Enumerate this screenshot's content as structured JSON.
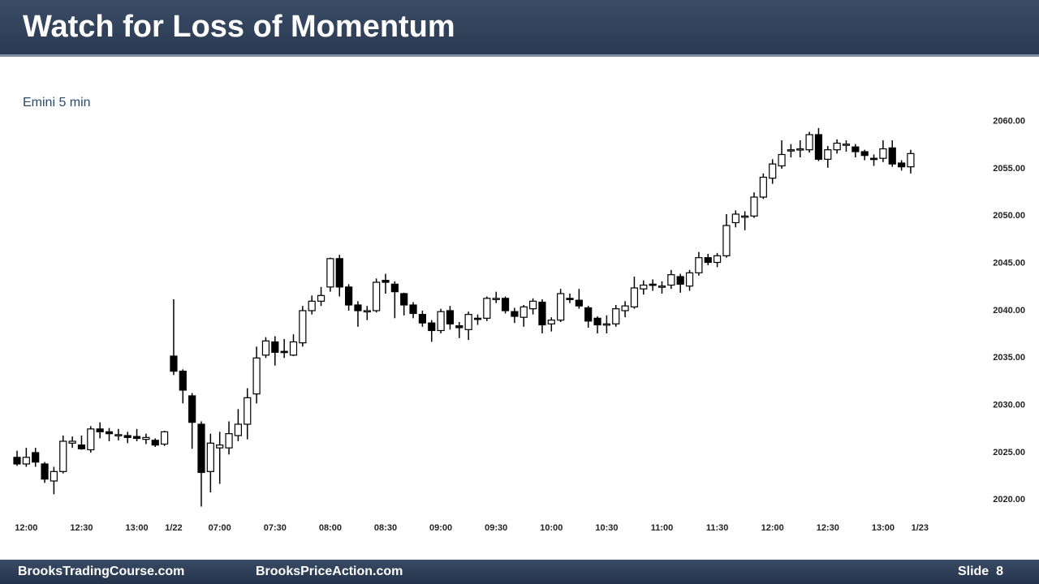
{
  "slide": {
    "title": "Watch for Loss of Momentum",
    "footer_left": "BrooksTradingCourse.com",
    "footer_center": "BrooksPriceAction.com",
    "footer_right": "Slide  8"
  },
  "chart_data": {
    "type": "candlestick",
    "subtitle": "Emini 5 min",
    "categories": [
      null,
      "12:00",
      null,
      null,
      null,
      null,
      null,
      "12:30",
      null,
      null,
      null,
      null,
      null,
      "13:00",
      null,
      null,
      null,
      "1/22",
      null,
      null,
      null,
      null,
      "07:00",
      null,
      null,
      null,
      null,
      null,
      "07:30",
      null,
      null,
      null,
      null,
      null,
      "08:00",
      null,
      null,
      null,
      null,
      null,
      "08:30",
      null,
      null,
      null,
      null,
      null,
      "09:00",
      null,
      null,
      null,
      null,
      null,
      "09:30",
      null,
      null,
      null,
      null,
      null,
      "10:00",
      null,
      null,
      null,
      null,
      null,
      "10:30",
      null,
      null,
      null,
      null,
      null,
      "11:00",
      null,
      null,
      null,
      null,
      null,
      "11:30",
      null,
      null,
      null,
      null,
      null,
      "12:00",
      null,
      null,
      null,
      null,
      null,
      "12:30",
      null,
      null,
      null,
      null,
      null,
      "13:00",
      null,
      null,
      null,
      "1/23"
    ],
    "open": [
      2024.5,
      2023.8,
      2025,
      2023.8,
      2022,
      2023,
      2026,
      2025.8,
      2025.3,
      2027.5,
      2027.2,
      2026.8,
      2026.8,
      2026.7,
      2026.4,
      2026.3,
      2025.9,
      2035.2,
      2033.6,
      2031,
      2028,
      2023,
      2025.5,
      2025.5,
      2026.8,
      2028,
      2031.2,
      2035.3,
      2036.7,
      2035.7,
      2035.3,
      2036.6,
      2040,
      2041,
      2042.5,
      2045.5,
      2042.5,
      2040.6,
      2040,
      2040,
      2043.2,
      2042.8,
      2041.8,
      2040.6,
      2039.6,
      2038.7,
      2037.9,
      2040,
      2038.4,
      2038,
      2039.2,
      2039.2,
      2041.2,
      2041.3,
      2039.9,
      2039.3,
      2040.2,
      2040.9,
      2038.6,
      2039,
      2041.3,
      2041.1,
      2040.3,
      2039.2,
      2038.6,
      2038.6,
      2040,
      2040.4,
      2042.3,
      2042.8,
      2042.6,
      2042.7,
      2043.6,
      2042.6,
      2044,
      2045.6,
      2045.1,
      2045.8,
      2049.3,
      2050,
      2050,
      2052,
      2054,
      2055.3,
      2057,
      2057,
      2057,
      2058.6,
      2056,
      2057,
      2057.5,
      2057.3,
      2056.8,
      2056.1,
      2056.1,
      2057.2,
      2055.6,
      2055.2,
      null
    ],
    "high": [
      2025.2,
      2025.5,
      2025.5,
      2024,
      2023.5,
      2026.8,
      2026.7,
      2026.8,
      2027.8,
      2028.2,
      2027.6,
      2027.5,
      2027.2,
      2027.5,
      2027,
      2026.5,
      2027.3,
      2041.2,
      2033.8,
      2031.3,
      2028.3,
      2027,
      2027.2,
      2028.3,
      2029.6,
      2031.8,
      2036.2,
      2037.2,
      2037.3,
      2037,
      2037.5,
      2040.5,
      2041.6,
      2042.5,
      2045.6,
      2045.9,
      2042.8,
      2041,
      2040.5,
      2043.4,
      2043.9,
      2043.1,
      2041.9,
      2040.9,
      2040,
      2039,
      2040.2,
      2040.5,
      2038.8,
      2039.9,
      2039.6,
      2041.5,
      2042,
      2041.5,
      2040.3,
      2040.6,
      2041.3,
      2041.2,
      2039.3,
      2042.3,
      2041.8,
      2042.3,
      2040.5,
      2039.4,
      2039.5,
      2040.6,
      2041,
      2043.6,
      2043.2,
      2043.3,
      2043.1,
      2044.3,
      2043.9,
      2044.3,
      2046.2,
      2046,
      2046.1,
      2050.2,
      2050.6,
      2050.5,
      2052.5,
      2054.5,
      2056,
      2058,
      2057.6,
      2058,
      2058.9,
      2059.3,
      2057.4,
      2058.1,
      2058,
      2057.6,
      2057,
      2056.5,
      2058,
      2058,
      2055.9,
      2057,
      null
    ],
    "low": [
      2023.6,
      2023.5,
      2023.5,
      2021.8,
      2020.6,
      2022.8,
      2025.5,
      2025.3,
      2025,
      2026.5,
      2026.2,
      2026.3,
      2026,
      2026.2,
      2025.9,
      2025.6,
      2025.7,
      2033.2,
      2030.2,
      2025.4,
      2019.3,
      2020.8,
      2021.7,
      2024.8,
      2026.2,
      2026.4,
      2030.2,
      2035,
      2034.2,
      2035,
      2035.2,
      2036.2,
      2039.6,
      2040.5,
      2042,
      2041.5,
      2040,
      2038.3,
      2039,
      2039.8,
      2041.8,
      2039.2,
      2039.5,
      2039.2,
      2038.3,
      2036.7,
      2037.6,
      2038,
      2037.1,
      2036.9,
      2038.5,
      2038.9,
      2040.8,
      2039.7,
      2038.7,
      2038.3,
      2039.6,
      2037.6,
      2037.8,
      2038.8,
      2040.8,
      2040.2,
      2038.2,
      2037.6,
      2037.6,
      2038.3,
      2039.3,
      2040.2,
      2041.7,
      2042.1,
      2041.8,
      2042.3,
      2041.9,
      2042.1,
      2043.7,
      2044.8,
      2044.6,
      2045.6,
      2048.8,
      2048.5,
      2049.8,
      2051.8,
      2053.4,
      2055,
      2056.2,
      2056.2,
      2056.7,
      2055.8,
      2055.1,
      2056.6,
      2056.8,
      2056.2,
      2055.9,
      2055.3,
      2055.7,
      2055.2,
      2054.8,
      2054.5,
      null
    ],
    "close": [
      2023.8,
      2024.5,
      2024,
      2022.2,
      2023,
      2026.2,
      2026.2,
      2025.4,
      2027.5,
      2027.2,
      2027,
      2026.9,
      2026.6,
      2026.5,
      2026.6,
      2025.8,
      2027.2,
      2033.6,
      2031.6,
      2028.2,
      2022.9,
      2026,
      2025.8,
      2027,
      2028,
      2030.8,
      2035,
      2036.8,
      2035.6,
      2035.6,
      2036.7,
      2040,
      2041,
      2041.6,
      2045.5,
      2042.5,
      2040.6,
      2040,
      2040,
      2043,
      2043,
      2042,
      2040.6,
      2039.7,
      2038.7,
      2037.9,
      2039.9,
      2038.6,
      2038.2,
      2039.6,
      2039.1,
      2041.3,
      2041.3,
      2040,
      2039.4,
      2040.4,
      2041,
      2038.5,
      2039,
      2041.8,
      2041.2,
      2040.5,
      2038.9,
      2038.5,
      2038.6,
      2040.2,
      2040.5,
      2042.4,
      2042.7,
      2042.7,
      2042.6,
      2043.8,
      2042.8,
      2044,
      2045.6,
      2045.1,
      2045.8,
      2049,
      2050.2,
      2050,
      2052,
      2054.1,
      2055.5,
      2056.5,
      2057,
      2057.1,
      2058.6,
      2056,
      2057,
      2057.7,
      2057.6,
      2056.8,
      2056.4,
      2056,
      2057.1,
      2055.5,
      2055.2,
      2056.6,
      null
    ],
    "up_color": "#ffffff",
    "down_color": "#000000",
    "wick_color": "#000000",
    "ylim": [
      2019,
      2061
    ],
    "yticks": [
      {
        "value": 2020,
        "label": "2020.00"
      },
      {
        "value": 2025,
        "label": "2025.00"
      },
      {
        "value": 2030,
        "label": "2030.00"
      },
      {
        "value": 2035,
        "label": "2035.00"
      },
      {
        "value": 2040,
        "label": "2040.00"
      },
      {
        "value": 2045,
        "label": "2045.00"
      },
      {
        "value": 2050,
        "label": "2050.00"
      },
      {
        "value": 2055,
        "label": "2055.00"
      },
      {
        "value": 2060,
        "label": "2060.00"
      }
    ],
    "grid": false
  }
}
